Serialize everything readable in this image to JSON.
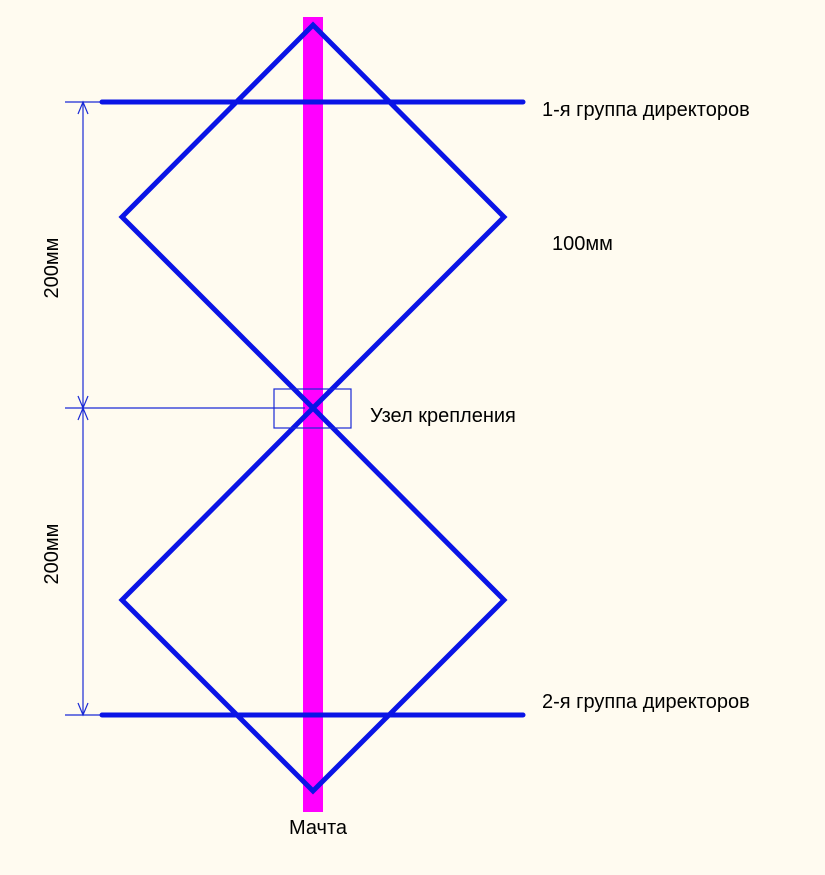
{
  "labels": {
    "directors_group_1": "1-я группа директоров",
    "directors_group_2": "2-я группа директоров",
    "dimension_top": "200мм",
    "dimension_bottom": "200мм",
    "side_dimension": "100мм",
    "mount_node": "Узел крепления",
    "mast": "Мачта"
  },
  "colors": {
    "background": "#fffbf0",
    "element": "#0a14e6",
    "mast": "#ff00ff",
    "dimension": "#1a2ad6",
    "text": "#000000"
  }
}
